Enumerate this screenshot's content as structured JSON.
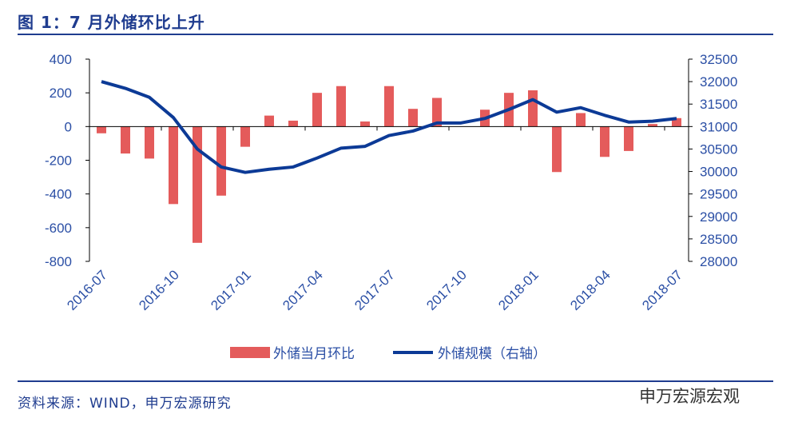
{
  "title": "图 1：7 月外储环比上升",
  "source": "资料来源：WIND，申万宏源研究",
  "watermark": "申万宏源宏观",
  "chart_data": {
    "type": "bar+line",
    "title": "7 月外储环比上升",
    "categories": [
      "2016-07",
      "2016-08",
      "2016-09",
      "2016-10",
      "2016-11",
      "2016-12",
      "2017-01",
      "2017-02",
      "2017-03",
      "2017-04",
      "2017-05",
      "2017-06",
      "2017-07",
      "2017-08",
      "2017-09",
      "2017-10",
      "2017-11",
      "2017-12",
      "2018-01",
      "2018-02",
      "2018-03",
      "2018-04",
      "2018-05",
      "2018-06",
      "2018-07"
    ],
    "xtick_labels": [
      "2016-07",
      "2016-10",
      "2017-01",
      "2017-04",
      "2017-07",
      "2017-10",
      "2018-01",
      "2018-04",
      "2018-07"
    ],
    "series": [
      {
        "name": "外储当月环比",
        "type": "bar",
        "axis": "left",
        "color": "#e45b5b",
        "values": [
          -40,
          -160,
          -190,
          -460,
          -690,
          -410,
          -120,
          65,
          35,
          200,
          240,
          30,
          240,
          105,
          170,
          0,
          100,
          200,
          215,
          -270,
          80,
          -180,
          -145,
          15,
          50
        ]
      },
      {
        "name": "外储规模（右轴）",
        "type": "line",
        "axis": "right",
        "color": "#0c3a96",
        "values": [
          32000,
          31850,
          31650,
          31200,
          30500,
          30100,
          29980,
          30050,
          30100,
          30300,
          30520,
          30560,
          30800,
          30900,
          31080,
          31080,
          31180,
          31380,
          31600,
          31320,
          31420,
          31250,
          31100,
          31120,
          31180
        ]
      }
    ],
    "ylim_left": [
      -800,
      400
    ],
    "yticks_left": [
      400,
      200,
      0,
      -200,
      -400,
      -600,
      -800
    ],
    "ylim_right": [
      28000,
      32500
    ],
    "yticks_right": [
      32500,
      32000,
      31500,
      31000,
      30500,
      30000,
      29500,
      29000,
      28500,
      28000
    ],
    "legend": "bottom"
  }
}
